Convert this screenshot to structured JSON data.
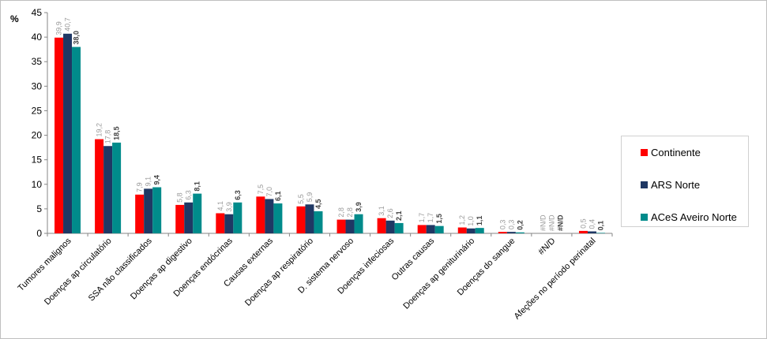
{
  "chart_data": {
    "type": "bar",
    "ylabel": "%",
    "ylim": [
      0,
      45
    ],
    "yticks": [
      0,
      5,
      10,
      15,
      20,
      25,
      30,
      35,
      40,
      45
    ],
    "grid": false,
    "legend_position": "right",
    "categories": [
      "Tumores malignos",
      "Doenças ap circulatório",
      "SSA não classificados",
      "Doenças ap digestivo",
      "Doenças endócrinas",
      "Causas externas",
      "Doenças ap respiratório",
      "D. sistema nervoso",
      "Doenças infeciosas",
      "Outras causas",
      "Doenças ap geniturinário",
      "Doenças do sangue",
      "#N/D",
      "Afeções no período perinatal"
    ],
    "series": [
      {
        "name": "Continente",
        "color": "#ff0000",
        "values": [
          39.9,
          19.2,
          7.9,
          5.8,
          4.1,
          7.5,
          5.5,
          2.8,
          3.1,
          1.7,
          1.2,
          0.3,
          null,
          0.5
        ],
        "labels": [
          "39,9",
          "19,2",
          "7,9",
          "5,8",
          "4,1",
          "7,5",
          "5,5",
          "2,8",
          "3,1",
          "1,7",
          "1,2",
          "0,3",
          "#N/D",
          "0,5"
        ]
      },
      {
        "name": "ARS Norte",
        "color": "#1f3864",
        "values": [
          40.7,
          17.8,
          9.1,
          6.3,
          3.9,
          7.0,
          5.9,
          2.8,
          2.6,
          1.7,
          1.0,
          0.3,
          null,
          0.4
        ],
        "labels": [
          "40,7",
          "17,8",
          "9,1",
          "6,3",
          "3,9",
          "7,0",
          "5,9",
          "2,8",
          "2,6",
          "1,7",
          "1,0",
          "0,3",
          "#N/D",
          "0,4"
        ]
      },
      {
        "name": "ACeS Aveiro Norte",
        "color": "#008b8b",
        "values": [
          38.0,
          18.5,
          9.4,
          8.1,
          6.3,
          6.1,
          4.5,
          3.9,
          2.1,
          1.5,
          1.1,
          0.2,
          null,
          0.1
        ],
        "labels": [
          "38,0",
          "18,5",
          "9,4",
          "8,1",
          "6,3",
          "6,1",
          "4,5",
          "3,9",
          "2,1",
          "1,5",
          "1,1",
          "0,2",
          "#N/D",
          "0,1"
        ]
      }
    ]
  }
}
